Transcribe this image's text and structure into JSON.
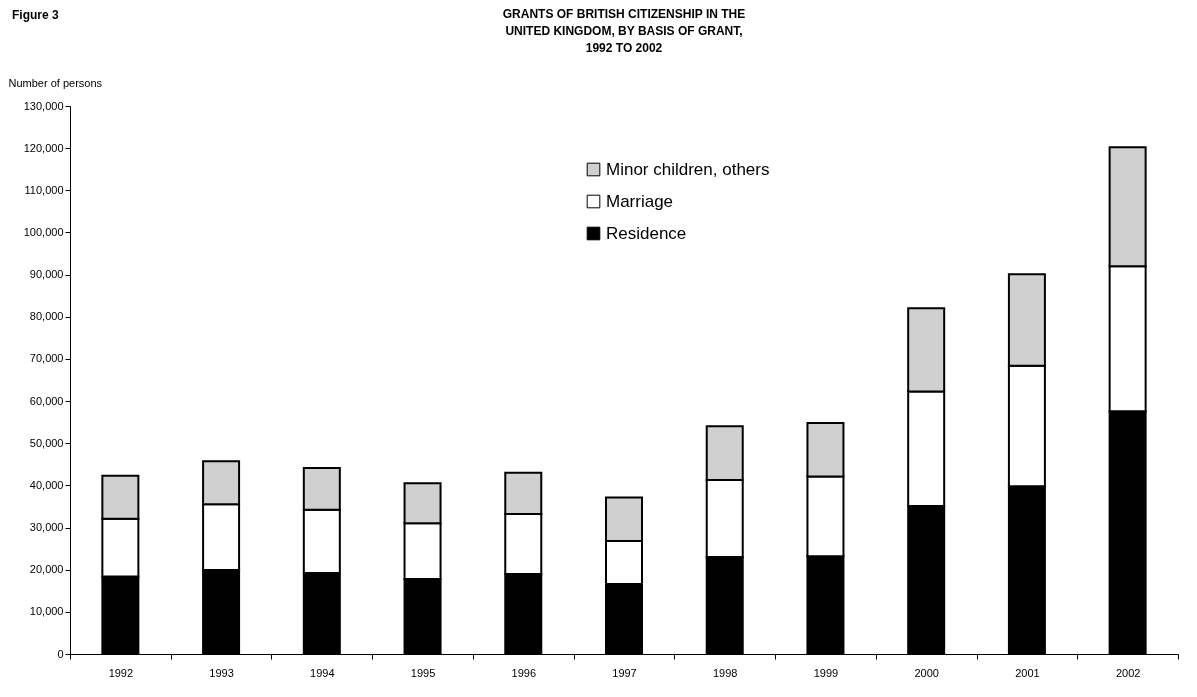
{
  "chart_data": {
    "type": "bar",
    "title": "GRANTS OF BRITISH CITIZENSHIP IN THE\nUNITED KINGDOM, BY BASIS OF GRANT,\n1992 TO 2002",
    "ylabel": "Number of persons",
    "annotations": [
      "Figure 3"
    ],
    "categories": [
      "1992",
      "1993",
      "1994",
      "1995",
      "1996",
      "1997",
      "1998",
      "1999",
      "2000",
      "2001",
      "2002"
    ],
    "stacked": true,
    "grid": false,
    "legend": "top right",
    "ylim": [
      0,
      130000
    ],
    "yticks": [
      0,
      {
        "value": 10000,
        "label": "10,000"
      },
      {
        "value": 20000,
        "label": "20,000"
      },
      {
        "value": 30000,
        "label": "30,000"
      },
      {
        "value": 40000,
        "label": "40,000"
      },
      {
        "value": 50000,
        "label": "50,000"
      },
      {
        "value": 60000,
        "label": "60,000"
      },
      {
        "value": 70000,
        "label": "70,000"
      },
      {
        "value": 80000,
        "label": "80,000"
      },
      {
        "value": 90000,
        "label": "90,000"
      },
      {
        "value": 100000,
        "label": "100,000"
      },
      {
        "value": 110000,
        "label": "110,000"
      },
      {
        "value": 120000,
        "label": "120,000"
      },
      {
        "value": 130000,
        "label": "130,000"
      }
    ],
    "series": [
      {
        "name": "Residence",
        "color": "#000000",
        "values": [
          18400,
          19900,
          19200,
          17800,
          19000,
          16600,
          23000,
          23200,
          35100,
          39800,
          57600
        ]
      },
      {
        "name": "Marriage",
        "color": "#ffffff",
        "values": [
          13700,
          15600,
          15000,
          13200,
          14200,
          10200,
          18300,
          18900,
          27200,
          28600,
          34400
        ]
      },
      {
        "name": "Minor children, others",
        "color": "#d0d0d0",
        "values": [
          10200,
          10200,
          9900,
          9500,
          9800,
          10300,
          12700,
          12700,
          19700,
          21700,
          28200
        ]
      }
    ]
  }
}
